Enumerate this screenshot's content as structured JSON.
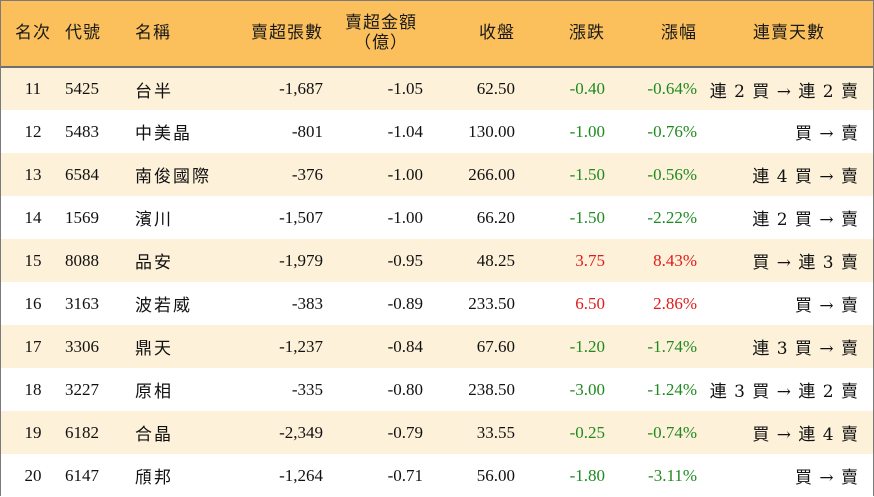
{
  "headers": {
    "rank": "名次",
    "code": "代號",
    "name": "名稱",
    "net_sell_lots": "賣超張數",
    "net_sell_amount_line1": "賣超金額",
    "net_sell_amount_line2": "（億）",
    "close": "收盤",
    "change": "漲跌",
    "change_pct": "漲幅",
    "streak": "連賣天數"
  },
  "rows": [
    {
      "rank": "11",
      "code": "5425",
      "name": "台半",
      "lots": "-1,687",
      "amount": "-1.05",
      "close": "62.50",
      "change": "-0.40",
      "pct": "-0.64%",
      "streak": "連 2 買 → 連 2 賣",
      "dir": "down"
    },
    {
      "rank": "12",
      "code": "5483",
      "name": "中美晶",
      "lots": "-801",
      "amount": "-1.04",
      "close": "130.00",
      "change": "-1.00",
      "pct": "-0.76%",
      "streak": "買 → 賣",
      "dir": "down"
    },
    {
      "rank": "13",
      "code": "6584",
      "name": "南俊國際",
      "lots": "-376",
      "amount": "-1.00",
      "close": "266.00",
      "change": "-1.50",
      "pct": "-0.56%",
      "streak": "連 4 買 → 賣",
      "dir": "down"
    },
    {
      "rank": "14",
      "code": "1569",
      "name": "濱川",
      "lots": "-1,507",
      "amount": "-1.00",
      "close": "66.20",
      "change": "-1.50",
      "pct": "-2.22%",
      "streak": "連 2 買 → 賣",
      "dir": "down"
    },
    {
      "rank": "15",
      "code": "8088",
      "name": "品安",
      "lots": "-1,979",
      "amount": "-0.95",
      "close": "48.25",
      "change": "3.75",
      "pct": "8.43%",
      "streak": "買 → 連 3 賣",
      "dir": "up"
    },
    {
      "rank": "16",
      "code": "3163",
      "name": "波若威",
      "lots": "-383",
      "amount": "-0.89",
      "close": "233.50",
      "change": "6.50",
      "pct": "2.86%",
      "streak": "買 → 賣",
      "dir": "up"
    },
    {
      "rank": "17",
      "code": "3306",
      "name": "鼎天",
      "lots": "-1,237",
      "amount": "-0.84",
      "close": "67.60",
      "change": "-1.20",
      "pct": "-1.74%",
      "streak": "連 3 買 → 賣",
      "dir": "down"
    },
    {
      "rank": "18",
      "code": "3227",
      "name": "原相",
      "lots": "-335",
      "amount": "-0.80",
      "close": "238.50",
      "change": "-3.00",
      "pct": "-1.24%",
      "streak": "連 3 買 → 連 2 賣",
      "dir": "down"
    },
    {
      "rank": "19",
      "code": "6182",
      "name": "合晶",
      "lots": "-2,349",
      "amount": "-0.79",
      "close": "33.55",
      "change": "-0.25",
      "pct": "-0.74%",
      "streak": "買 → 連 4 賣",
      "dir": "down"
    },
    {
      "rank": "20",
      "code": "6147",
      "name": "頎邦",
      "lots": "-1,264",
      "amount": "-0.71",
      "close": "56.00",
      "change": "-1.80",
      "pct": "-3.11%",
      "streak": "買 → 賣",
      "dir": "down"
    }
  ],
  "colors": {
    "header_bg": "#fbc05b",
    "stripe_bg": "#fdf1d9",
    "down": "#1f8a1f",
    "up": "#e01b1b"
  }
}
